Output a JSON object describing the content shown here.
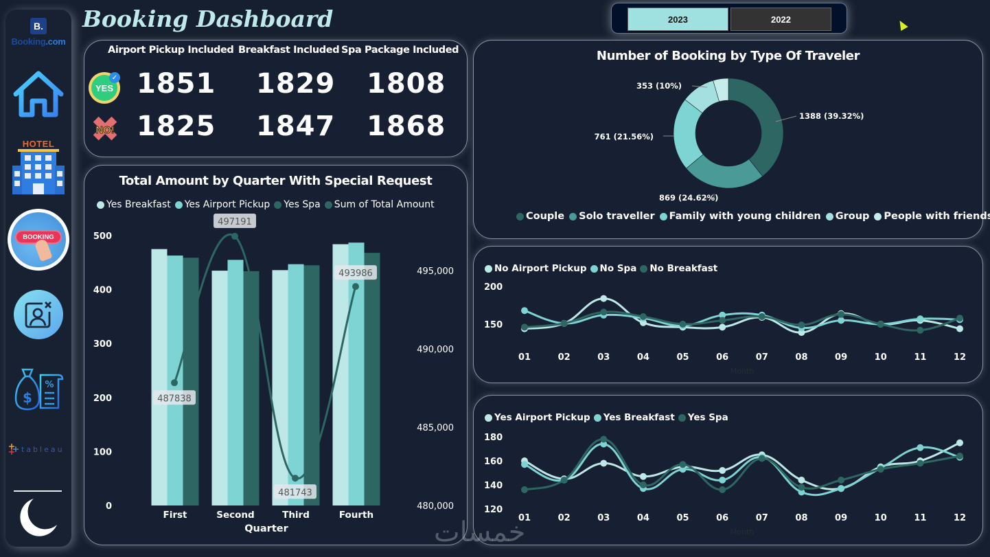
{
  "app": {
    "title": "Booking Dashboard"
  },
  "sidebar": {
    "brand": {
      "logo_letter": "B.",
      "name_part1": "Booking",
      "name_part2": ".com"
    },
    "items": [
      {
        "name": "home",
        "icon": "house-icon"
      },
      {
        "name": "hotel",
        "icon": "hotel-icon",
        "label": "HOTEL"
      },
      {
        "name": "booking",
        "icon": "booking-icon",
        "label": "BOOKING"
      },
      {
        "name": "cancellation",
        "icon": "user-cancel-icon"
      },
      {
        "name": "finance",
        "icon": "money-bag-receipt-icon"
      },
      {
        "name": "tableau",
        "icon": "tableau-logo-icon",
        "label": "tableau"
      },
      {
        "name": "dark-mode",
        "icon": "moon-icon"
      }
    ]
  },
  "year_slicer": {
    "options": [
      "2023",
      "2022"
    ],
    "selected": "2023"
  },
  "kpis": {
    "headers": [
      "Airport Pickup Included",
      "Breakfast Included",
      "Spa Package Included"
    ],
    "yes_label": "YES",
    "no_label": "NO!",
    "yes_values": [
      "1851",
      "1829",
      "1808"
    ],
    "no_values": [
      "1825",
      "1847",
      "1868"
    ]
  },
  "colors": {
    "background": "#161f2f",
    "card": "#172032",
    "light": "#bee8e8",
    "mid": "#7dd4d3",
    "dark": "#2e6664",
    "solo": "#4a9a97",
    "group": "#a3e0df",
    "friends": "#c6ecec"
  },
  "chart_data": [
    {
      "id": "bar-quarter",
      "type": "bar",
      "title": "Total Amount by Quarter With Special Request",
      "xlabel": "Quarter",
      "ylabel": "",
      "categories": [
        "First",
        "Second",
        "Third",
        "Fourth"
      ],
      "series": [
        {
          "name": "Yes Breakfast",
          "values": [
            475,
            435,
            436,
            484
          ]
        },
        {
          "name": "Yes Airport Pickup",
          "values": [
            463,
            455,
            447,
            487
          ]
        },
        {
          "name": "Yes Spa",
          "values": [
            459,
            434,
            445,
            468
          ]
        }
      ],
      "line_series": {
        "name": "Sum of Total Amount",
        "values": [
          487838,
          497191,
          481743,
          493986
        ],
        "labels": [
          "487838",
          "497191",
          "481743",
          "493986"
        ]
      },
      "ylim": [
        0,
        500
      ],
      "yticks": [
        "0",
        "100",
        "200",
        "300",
        "400",
        "500"
      ],
      "y2lim": [
        480000,
        498000
      ],
      "y2ticks": [
        "480,000",
        "485,000",
        "490,000",
        "495,000"
      ],
      "legend": [
        "Yes Breakfast",
        "Yes Airport Pickup",
        "Yes Spa",
        "Sum of Total Amount"
      ],
      "legend_position": "top-left"
    },
    {
      "id": "donut-traveler",
      "type": "pie",
      "title": "Number of Booking by Type Of Traveler",
      "categories": [
        "Couple",
        "Solo traveller",
        "Family with young children",
        "Group",
        "People with friends"
      ],
      "values": [
        1388,
        869,
        761,
        353,
        159
      ],
      "labels": [
        "1388 (39.32%)",
        "869 (24.62%)",
        "761 (21.56%)",
        "353 (10%)",
        ""
      ],
      "legend_position": "bottom"
    },
    {
      "id": "line-no",
      "type": "line",
      "title": "",
      "xlabel": "Month",
      "x": [
        "01",
        "02",
        "03",
        "04",
        "05",
        "06",
        "07",
        "08",
        "09",
        "10",
        "11",
        "12"
      ],
      "series": [
        {
          "name": "No Airport Pickup",
          "values": [
            144,
            151,
            184,
            152,
            146,
            146,
            159,
            139,
            164,
            150,
            155,
            144
          ]
        },
        {
          "name": "No Spa",
          "values": [
            168,
            151,
            162,
            158,
            148,
            162,
            162,
            145,
            155,
            150,
            157,
            156
          ]
        },
        {
          "name": "No Breakfast",
          "values": [
            146,
            151,
            166,
            160,
            150,
            155,
            160,
            149,
            163,
            150,
            142,
            158
          ]
        }
      ],
      "ylim": [
        125,
        200
      ],
      "yticks": [
        "150",
        "200"
      ],
      "legend_position": "top-left"
    },
    {
      "id": "line-yes",
      "type": "line",
      "title": "",
      "xlabel": "Month",
      "x": [
        "01",
        "02",
        "03",
        "04",
        "05",
        "06",
        "07",
        "08",
        "09",
        "10",
        "11",
        "12"
      ],
      "series": [
        {
          "name": "Yes Airport Pickup",
          "values": [
            160,
            145,
            158,
            147,
            155,
            152,
            165,
            144,
            137,
            155,
            160,
            175
          ]
        },
        {
          "name": "Yes Breakfast",
          "values": [
            157,
            144,
            174,
            137,
            153,
            144,
            163,
            134,
            137,
            154,
            171,
            163
          ]
        },
        {
          "name": "Yes Spa",
          "values": [
            136,
            144,
            178,
            140,
            157,
            136,
            162,
            138,
            144,
            153,
            158,
            164
          ]
        }
      ],
      "ylim": [
        120,
        180
      ],
      "yticks": [
        "120",
        "140",
        "160",
        "180"
      ],
      "legend_position": "top-left"
    }
  ],
  "watermark": "خمسات"
}
